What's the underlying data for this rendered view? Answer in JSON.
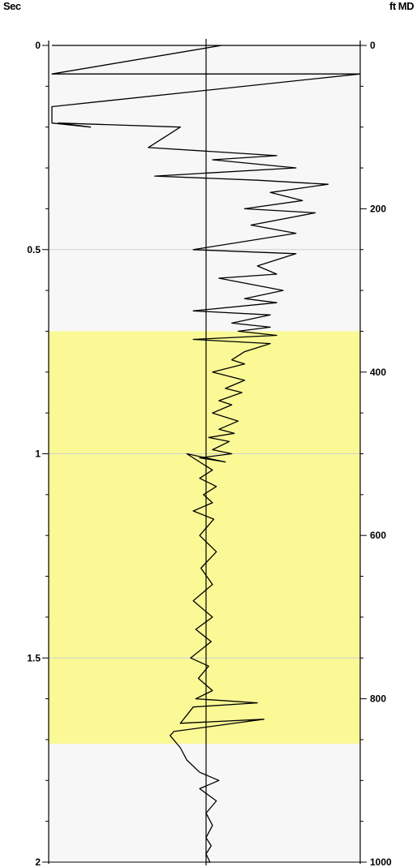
{
  "chart_data": {
    "type": "line",
    "left_axis": {
      "unit": "Sec",
      "range": [
        0,
        2
      ],
      "ticks": [
        "0",
        "0.5",
        "1",
        "1.5",
        "2"
      ]
    },
    "right_axis": {
      "unit": "ft MD",
      "range": [
        0,
        1000
      ],
      "ticks": [
        "0",
        "200",
        "400",
        "600",
        "800",
        "1000"
      ]
    },
    "grid_y": [
      0.5,
      1,
      1.5
    ],
    "zones": [
      {
        "name": "",
        "from_sec": 0.0,
        "to_sec": 0.7,
        "color": "#f7f7f7"
      },
      {
        "name": "",
        "from_sec": 0.7,
        "to_sec": 1.71,
        "color": "#fbf996"
      },
      {
        "name": "",
        "from_sec": 1.71,
        "to_sec": 2.0,
        "color": "#f7f7f7"
      }
    ],
    "baseline": 0,
    "x_range": [
      -1.2,
      1.2
    ],
    "trace_color": "#000000",
    "series": [
      {
        "values_x": [
          -1.2,
          1.2,
          0.12,
          0.12,
          -1.2,
          1.2,
          -1.2,
          -1.2,
          -0.9,
          -1.15,
          -0.2,
          -0.45,
          0.55,
          0.05,
          0.7,
          -0.4,
          0.4,
          0.95,
          0.5,
          0.75,
          0.3,
          0.85,
          0.35,
          0.7,
          -0.1,
          0.7,
          0.4,
          0.55,
          0.1,
          0.6,
          0.3,
          0.55,
          -0.1,
          0.5,
          0.2,
          0.5,
          0.25,
          0.55,
          -0.1,
          0.5,
          0.3,
          0.2,
          0.3,
          0.05,
          0.3,
          0.15,
          0.28,
          0.1,
          0.2,
          0.05,
          0.25,
          0.1,
          0.22,
          0.02,
          0.18,
          0.05,
          0.2,
          -0.05,
          0.15,
          -0.15,
          0.05,
          -0.05,
          0.08,
          -0.02,
          0.05,
          -0.1,
          0.06,
          -0.05,
          0.08,
          -0.04,
          0.05,
          -0.1,
          0.05,
          -0.08,
          0.04,
          -0.12,
          0.02,
          -0.06,
          0.05,
          -0.08,
          0.4,
          -0.1,
          -0.15,
          -0.2,
          0.45,
          -0.25,
          -0.28,
          -0.2,
          -0.15,
          -0.05,
          0.1,
          -0.05,
          0.08,
          0.0,
          0.05,
          0.0,
          0.04,
          0.0,
          0.03,
          0.0
        ],
        "values_sec": [
          0.0,
          0.0,
          0.0,
          0.0,
          0.07,
          0.07,
          0.15,
          0.19,
          0.2,
          0.19,
          0.2,
          0.25,
          0.27,
          0.28,
          0.3,
          0.32,
          0.33,
          0.34,
          0.36,
          0.38,
          0.4,
          0.41,
          0.44,
          0.46,
          0.5,
          0.51,
          0.54,
          0.56,
          0.57,
          0.6,
          0.62,
          0.63,
          0.65,
          0.66,
          0.68,
          0.69,
          0.7,
          0.71,
          0.72,
          0.73,
          0.75,
          0.77,
          0.78,
          0.8,
          0.82,
          0.84,
          0.85,
          0.87,
          0.88,
          0.9,
          0.92,
          0.94,
          0.95,
          0.96,
          0.97,
          0.99,
          1.0,
          1.01,
          1.02,
          1.0,
          1.04,
          1.06,
          1.08,
          1.1,
          1.12,
          1.14,
          1.16,
          1.2,
          1.24,
          1.28,
          1.32,
          1.36,
          1.4,
          1.43,
          1.46,
          1.5,
          1.52,
          1.55,
          1.58,
          1.6,
          1.61,
          1.62,
          1.64,
          1.66,
          1.65,
          1.68,
          1.69,
          1.72,
          1.75,
          1.78,
          1.8,
          1.82,
          1.85,
          1.88,
          1.91,
          1.94,
          1.96,
          1.98,
          2.0,
          2.0
        ]
      }
    ]
  }
}
